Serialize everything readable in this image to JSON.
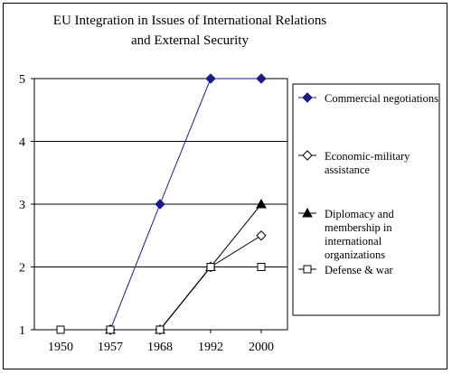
{
  "chart_data": {
    "type": "line",
    "title_line1": "EU Integration in Issues of International Relations",
    "title_line2": "and External Security",
    "x": [
      "1950",
      "1957",
      "1968",
      "1992",
      "2000"
    ],
    "ylim": [
      1,
      5
    ],
    "yticks": [
      "1",
      "2",
      "3",
      "4",
      "5"
    ],
    "grid": true,
    "legend_position": "right",
    "series": [
      {
        "name": "Commercial negotiations",
        "legend_lines": [
          "Commercial negotiations"
        ],
        "marker": "diamond-filled",
        "color": "#1a1a8c",
        "values": [
          null,
          1,
          3,
          5,
          5
        ]
      },
      {
        "name": "Economic-military assistance",
        "legend_lines": [
          "Economic-military",
          "assistance"
        ],
        "marker": "diamond-open",
        "color": "#000000",
        "values": [
          null,
          1,
          1,
          2,
          2.5
        ]
      },
      {
        "name": "Diplomacy and membership in international organizations",
        "legend_lines": [
          "Diplomacy and",
          "membership in",
          "international",
          "organizations"
        ],
        "marker": "triangle-filled",
        "color": "#000000",
        "values": [
          null,
          1,
          1,
          2,
          3
        ]
      },
      {
        "name": "Defense & war",
        "legend_lines": [
          "Defense & war"
        ],
        "marker": "square-open",
        "color": "#000000",
        "values": [
          1,
          1,
          1,
          2,
          2
        ]
      }
    ]
  }
}
